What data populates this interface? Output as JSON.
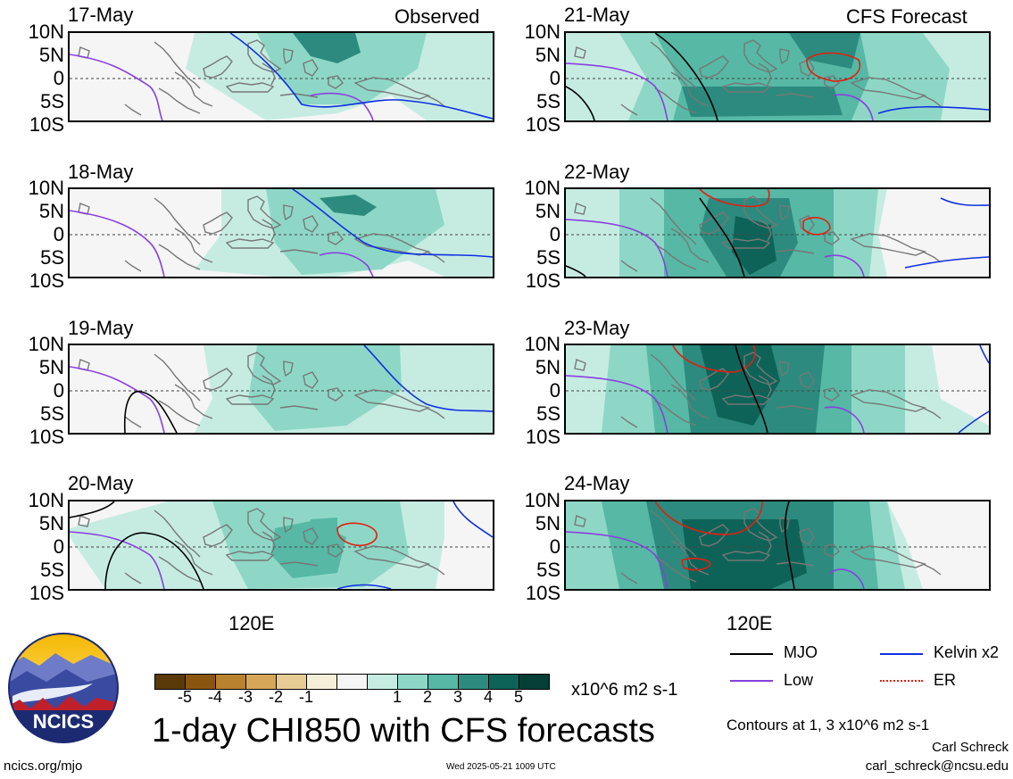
{
  "left_header": "Observed",
  "right_header": "CFS Forecast",
  "lat_labels": [
    "10N",
    "5N",
    "0",
    "5S",
    "10S"
  ],
  "lon_label": "120E",
  "panels_left": [
    {
      "date": "17-May"
    },
    {
      "date": "18-May"
    },
    {
      "date": "19-May"
    },
    {
      "date": "20-May"
    }
  ],
  "panels_right": [
    {
      "date": "21-May"
    },
    {
      "date": "22-May"
    },
    {
      "date": "23-May"
    },
    {
      "date": "24-May"
    }
  ],
  "colorbar": {
    "labels": [
      "-5",
      "-4",
      "-3",
      "-2",
      "-1",
      "1",
      "2",
      "3",
      "4",
      "5"
    ],
    "colors": [
      "#5a3a08",
      "#8a560f",
      "#b8822e",
      "#d6a758",
      "#e6cc94",
      "#f5efd8",
      "#f5f5f5",
      "#c6ece2",
      "#8ed7c6",
      "#56b8a5",
      "#2c8b7e",
      "#0e6358",
      "#053f36"
    ],
    "units": "x10^6 m2 s-1"
  },
  "title": "1-day CHI850 with CFS forecasts",
  "legend": [
    {
      "label": "MJO",
      "color": "#000000"
    },
    {
      "label": "Low",
      "color": "#8a3fe0"
    },
    {
      "label": "Kelvin x2",
      "color": "#1030e0"
    },
    {
      "label": "ER",
      "color": "#e02010"
    }
  ],
  "contours_note": "Contours at 1, 3 x10^6 m2 s-1",
  "author": "Carl Schreck",
  "email": "carl_schreck@ncsu.edu",
  "site": "ncics.org/mjo",
  "timestamp": "Wed 2025-05-21 1009 UTC",
  "logo_text": "NCICS",
  "chart_data": {
    "type": "heatmap",
    "title": "1-day CHI850 with CFS forecasts",
    "ylabel": "",
    "xlabel": "",
    "y_ticks": [
      "10N",
      "5N",
      "0",
      "5S",
      "10S"
    ],
    "x_ticks": [
      "120E"
    ],
    "ylim": [
      -10,
      10
    ],
    "color_levels": [
      -5,
      -4,
      -3,
      -2,
      -1,
      1,
      2,
      3,
      4,
      5
    ],
    "units": "x10^6 m2 s-1",
    "panels": [
      "17-May",
      "18-May",
      "19-May",
      "20-May",
      "21-May",
      "22-May",
      "23-May",
      "24-May"
    ],
    "series": [
      {
        "name": "MJO"
      },
      {
        "name": "Low"
      },
      {
        "name": "Kelvin x2"
      },
      {
        "name": "ER"
      }
    ]
  }
}
